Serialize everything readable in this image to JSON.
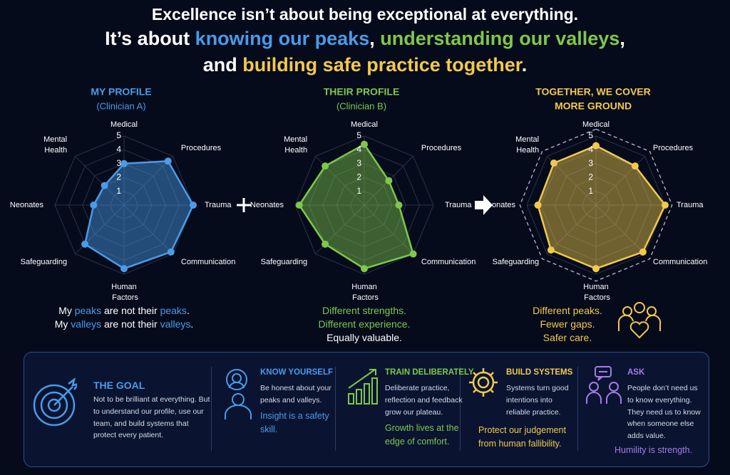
{
  "header": {
    "lines": [
      [
        {
          "text": "Excellence isn’t about being exceptional at everything.",
          "color": "#ffffff"
        }
      ],
      [
        {
          "text": "It’s about ",
          "color": "#ffffff"
        },
        {
          "text": "knowing our peaks",
          "color": "#4a9be8"
        },
        {
          "text": ", ",
          "color": "#ffffff"
        },
        {
          "text": "understanding our valleys",
          "color": "#7ec84a"
        },
        {
          "text": ",",
          "color": "#ffffff"
        }
      ],
      [
        {
          "text": "and ",
          "color": "#ffffff"
        },
        {
          "text": "building safe practice together",
          "color": "#f2c94c"
        },
        {
          "text": ".",
          "color": "#ffffff"
        }
      ]
    ]
  },
  "chart_data": [
    {
      "type": "radar",
      "title": "MY PROFILE",
      "subtitle": "(Clinician A)",
      "categories": [
        "Medical",
        "Procedures",
        "Trauma",
        "Communication",
        "Human Factors",
        "Safeguarding",
        "Neonates",
        "Mental Health"
      ],
      "series": [
        {
          "color": "#4a9be8",
          "values": [
            3,
            4.5,
            5,
            4.8,
            4.6,
            4,
            2.2,
            2
          ]
        }
      ],
      "rlim": [
        0,
        5
      ],
      "rticks": [
        1,
        2,
        3,
        4,
        5
      ],
      "grid": true,
      "caption": [
        [
          {
            "text": "My ",
            "color": "#ffffff"
          },
          {
            "text": "peaks",
            "color": "#4a9be8"
          },
          {
            "text": " are not their ",
            "color": "#ffffff"
          },
          {
            "text": "peaks",
            "color": "#4a9be8"
          },
          {
            "text": ".",
            "color": "#ffffff"
          }
        ],
        [
          {
            "text": "My ",
            "color": "#ffffff"
          },
          {
            "text": "valleys",
            "color": "#4a9be8"
          },
          {
            "text": " are not their ",
            "color": "#ffffff"
          },
          {
            "text": "valleys",
            "color": "#4a9be8"
          },
          {
            "text": ".",
            "color": "#ffffff"
          }
        ]
      ]
    },
    {
      "type": "radar",
      "title": "THEIR PROFILE",
      "subtitle": "(Clinician B)",
      "categories": [
        "Medical",
        "Procedures",
        "Trauma",
        "Communication",
        "Human Factors",
        "Safeguarding",
        "Neonates",
        "Mental Health"
      ],
      "series": [
        {
          "color": "#7ec84a",
          "values": [
            4.4,
            2.5,
            2.5,
            5,
            4.6,
            4,
            4.7,
            4
          ]
        }
      ],
      "rlim": [
        0,
        5
      ],
      "rticks": [
        1,
        2,
        3,
        4,
        5
      ],
      "grid": true,
      "caption": [
        [
          {
            "text": "Different strengths.",
            "color": "#7ec84a"
          }
        ],
        [
          {
            "text": "Different experience.",
            "color": "#7ec84a"
          }
        ],
        [
          {
            "text": "Equally valuable.",
            "color": "#ffffff"
          }
        ]
      ]
    },
    {
      "type": "radar",
      "title": [
        "TOGETHER, WE COVER",
        "MORE GROUND"
      ],
      "categories": [
        "Medical",
        "Procedures",
        "Trauma",
        "Communication",
        "Human Factors",
        "Safeguarding",
        "Neonates",
        "Mental Health"
      ],
      "series": [
        {
          "color": "#f2c94c",
          "values": [
            4.3,
            4,
            5,
            4.8,
            4.6,
            4.6,
            4.2,
            4.3
          ]
        }
      ],
      "rlim": [
        0,
        5
      ],
      "rticks": [
        1,
        2,
        3,
        4,
        5
      ],
      "grid": true,
      "boundary": "dashed",
      "caption": [
        [
          {
            "text": "Different peaks.",
            "color": "#f2c94c"
          }
        ],
        [
          {
            "text": "Fewer gaps.",
            "color": "#f2c94c"
          }
        ],
        [
          {
            "text": "Safer care.",
            "color": "#f2c94c"
          }
        ]
      ]
    }
  ],
  "panel": {
    "sections": [
      {
        "title": "THE GOAL",
        "color": "#4a9be8",
        "body": "Not to be brilliant at everything. But to understand our profile, use our team, and build systems that protect every patient."
      },
      {
        "title": "KNOW YOURSELF",
        "color": "#4a9be8",
        "body": "Be honest about your peaks and valleys.",
        "highlight": "Insight is a safety skill."
      },
      {
        "title": "TRAIN DELIBERATELY",
        "color": "#7ec84a",
        "body": "Deliberate practice, reflection and feedback grow our plateau.",
        "highlight": "Growth lives at the edge of comfort."
      },
      {
        "title": "BUILD SYSTEMS",
        "color": "#f2c94c",
        "body": "Systems turn good intentions into reliable practice.",
        "highlight": "Protect our judgement from human fallibility."
      },
      {
        "title": "ASK",
        "color": "#a57be8",
        "body": "People don’t need us to know everything. They need us to know when someone else adds value.",
        "highlight": "Humility is strength."
      }
    ]
  }
}
